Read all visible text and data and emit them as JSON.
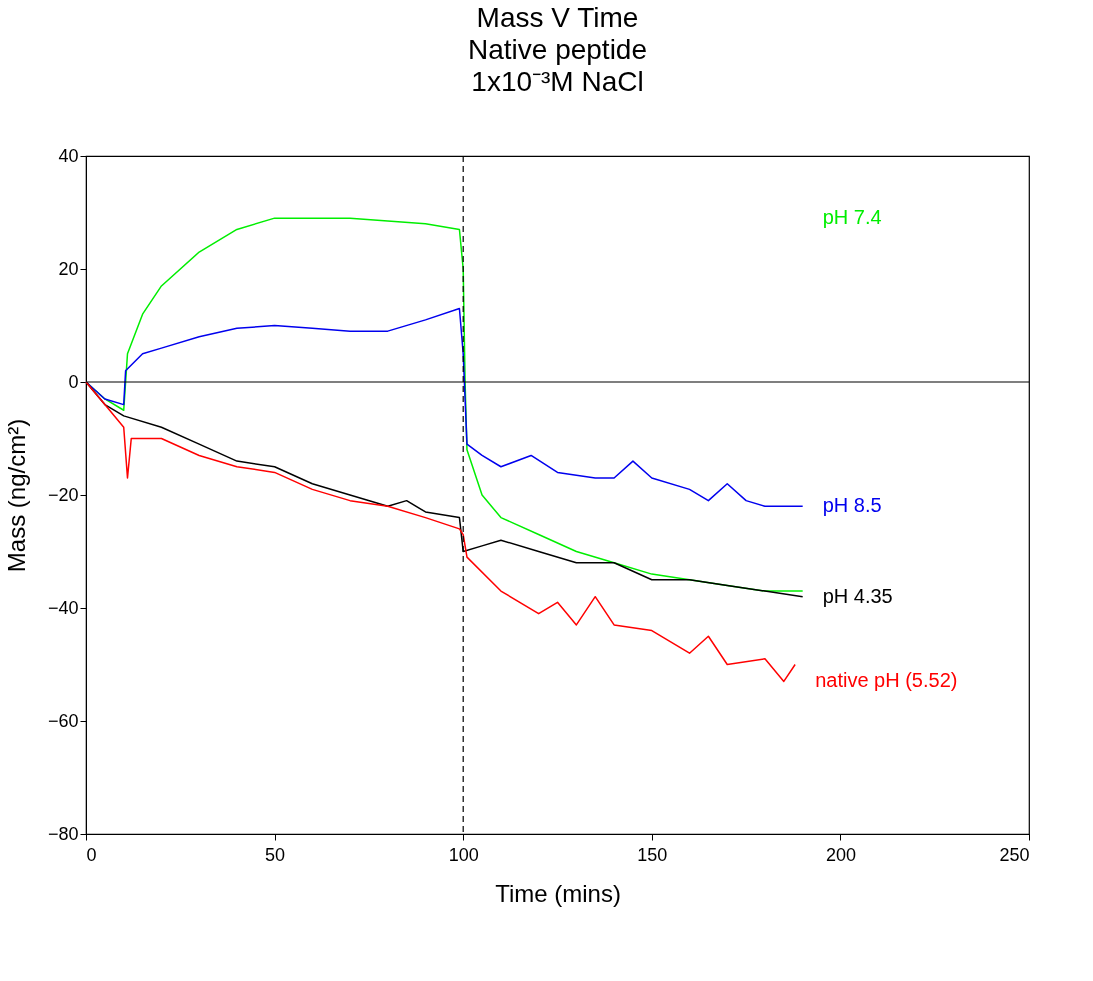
{
  "chart_data": {
    "type": "line",
    "title": [
      "Mass V Time",
      "Native peptide",
      "1x10⁻³M NaCl"
    ],
    "xlabel": "Time (mins)",
    "ylabel": "Mass (ng/cm²)",
    "xlim": [
      0,
      250
    ],
    "xticks": [
      0,
      50,
      100,
      150,
      200,
      250
    ],
    "ylim": [
      -80,
      40
    ],
    "yticks": [
      -80,
      -60,
      -40,
      -20,
      0,
      20,
      40
    ],
    "grid": false,
    "line_style": "solid",
    "marker": "none",
    "series": [
      {
        "name": "pH 7.4",
        "color": "#00ee00",
        "x": [
          0,
          5,
          10,
          10.5,
          11,
          15,
          20,
          30,
          40,
          50,
          60,
          70,
          80,
          90,
          99,
          100,
          100.5,
          101,
          105,
          110,
          120,
          130,
          140,
          150,
          160,
          170,
          180,
          190
        ],
        "values": [
          0,
          -3,
          -5,
          0,
          5,
          12,
          17,
          23,
          27,
          29,
          29,
          29,
          28.5,
          28,
          27,
          20,
          0,
          -12,
          -20,
          -24,
          -27,
          -30,
          -32,
          -34,
          -35,
          -36,
          -37,
          -37
        ]
      },
      {
        "name": "pH 8.5",
        "color": "#0000ee",
        "x": [
          0,
          5,
          10,
          10.5,
          15,
          20,
          30,
          40,
          50,
          60,
          70,
          80,
          90,
          99,
          100,
          101,
          105,
          110,
          118,
          125,
          135,
          140,
          145,
          150,
          160,
          165,
          170,
          175,
          180,
          190
        ],
        "values": [
          0,
          -3,
          -4,
          2,
          5,
          6,
          8,
          9.5,
          10,
          9.5,
          9,
          9,
          11,
          13,
          5,
          -11,
          -13,
          -15,
          -13,
          -16,
          -17,
          -17,
          -14,
          -17,
          -19,
          -21,
          -18,
          -21,
          -22,
          -22
        ]
      },
      {
        "name": "pH 4.35",
        "color": "#000000",
        "x": [
          0,
          5,
          10,
          20,
          30,
          40,
          50,
          60,
          70,
          80,
          85,
          90,
          99,
          100,
          105,
          110,
          120,
          130,
          140,
          150,
          160,
          170,
          180,
          190
        ],
        "values": [
          0,
          -4,
          -6,
          -8,
          -11,
          -14,
          -15,
          -18,
          -20,
          -22,
          -21,
          -23,
          -24,
          -30,
          -29,
          -28,
          -30,
          -32,
          -32,
          -35,
          -35,
          -36,
          -37,
          -38
        ]
      },
      {
        "name": "native pH (5.52)",
        "color": "#ff0000",
        "x": [
          0,
          5,
          10,
          11,
          12,
          20,
          30,
          40,
          50,
          60,
          70,
          80,
          90,
          99,
          100,
          101,
          110,
          120,
          125,
          130,
          135,
          140,
          150,
          160,
          165,
          170,
          180,
          185,
          188
        ],
        "values": [
          0,
          -4,
          -8,
          -17,
          -10,
          -10,
          -13,
          -15,
          -16,
          -19,
          -21,
          -22,
          -24,
          -26,
          -27,
          -31,
          -37,
          -41,
          -39,
          -43,
          -38,
          -43,
          -44,
          -48,
          -45,
          -50,
          -49,
          -53,
          -50
        ]
      }
    ],
    "ref_lines": [
      {
        "axis": "y",
        "value": 0,
        "color": "#000000",
        "line_style": "solid"
      },
      {
        "axis": "x",
        "value": 100,
        "color": "#000000",
        "line_style": "dashed"
      }
    ]
  }
}
